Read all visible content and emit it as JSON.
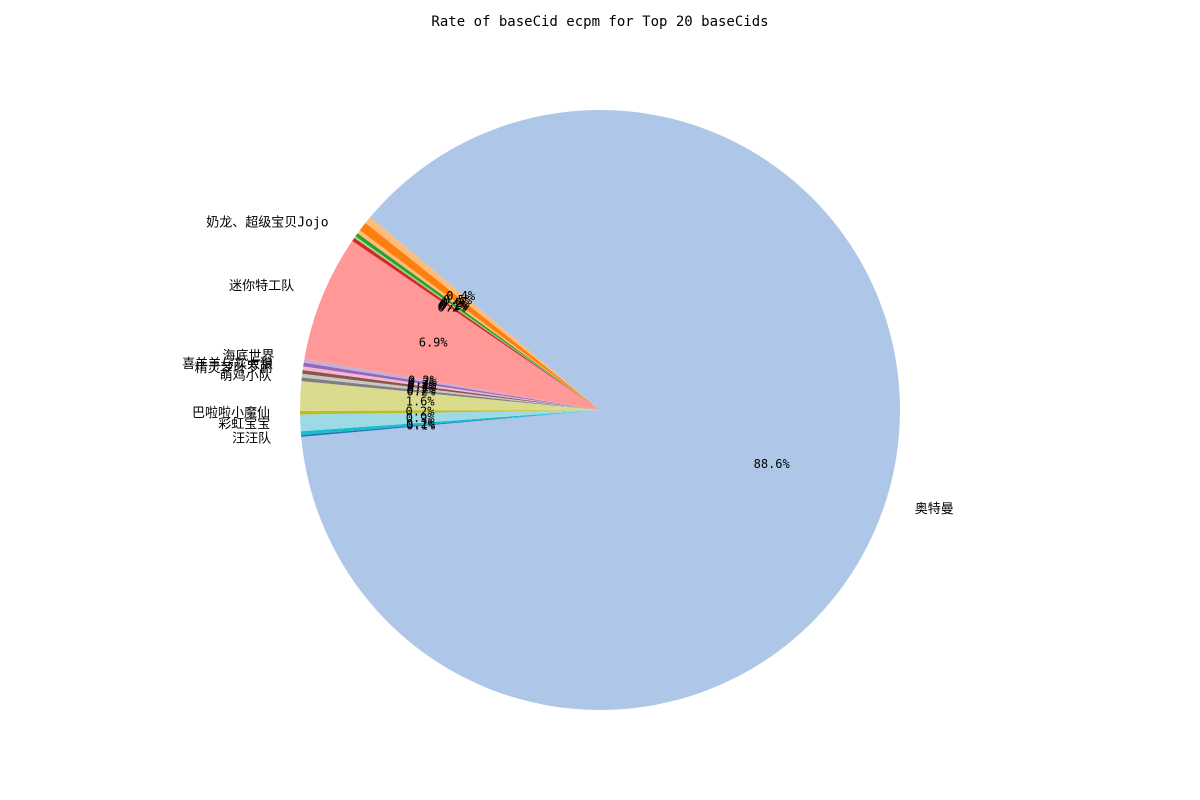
{
  "chart_data": {
    "type": "pie",
    "title": "Rate of baseCid ecpm for Top 20 baseCids",
    "slices": [
      {
        "label": "奥特曼",
        "value": 88.6,
        "pct_label": "88.6%",
        "color": "#aec7e8"
      },
      {
        "label": "汪汪队",
        "value": 0.1,
        "pct_label": "0.1%",
        "color": "#1f77b4"
      },
      {
        "label": "",
        "value": 0.2,
        "pct_label": "0.2%",
        "color": "#17becf"
      },
      {
        "label": "彩虹宝宝",
        "value": 0.9,
        "pct_label": "0.9%",
        "color": "#9edae5"
      },
      {
        "label": "巴啦啦小魔仙",
        "value": 0.2,
        "pct_label": "0.2%",
        "color": "#bcbd22"
      },
      {
        "label": "",
        "value": 1.6,
        "pct_label": "1.6%",
        "color": "#dbdb8d"
      },
      {
        "label": "萌鸡小队",
        "value": 0.2,
        "pct_label": "0.2%",
        "color": "#7f7f7f"
      },
      {
        "label": "",
        "value": 0.2,
        "pct_label": "0.2%",
        "color": "#c7c7c7"
      },
      {
        "label": "精灵梦叶罗丽",
        "value": 0.2,
        "pct_label": "0.2%",
        "color": "#8c564b"
      },
      {
        "label": "喜羊羊与灰太狼",
        "value": 0.2,
        "pct_label": "0.2%",
        "color": "#f7b6d2"
      },
      {
        "label": "",
        "value": 0.2,
        "pct_label": "0.2%",
        "color": "#9467bd"
      },
      {
        "label": "海底世界",
        "value": 0.2,
        "pct_label": "0.2%",
        "color": "#c5b0d5"
      },
      {
        "label": "迷你特工队",
        "value": 6.9,
        "pct_label": "6.9%",
        "color": "#ff9896"
      },
      {
        "label": "奶龙、超级宝贝Jojo",
        "value": 0.2,
        "pct_label": "0.2%",
        "color": "#d62728"
      },
      {
        "label": "",
        "value": 0.1,
        "pct_label": "0.1%",
        "color": "#98df8a"
      },
      {
        "label": "",
        "value": 0.2,
        "pct_label": "0.2%",
        "color": "#2ca02c"
      },
      {
        "label": "",
        "value": 0.2,
        "pct_label": "0.2%",
        "color": "#ffbb78"
      },
      {
        "label": "",
        "value": 0.5,
        "pct_label": "0.5%",
        "color": "#ff7f0e"
      },
      {
        "label": "",
        "value": 0.4,
        "pct_label": "0.4%",
        "color": "#ffbb78"
      }
    ]
  }
}
